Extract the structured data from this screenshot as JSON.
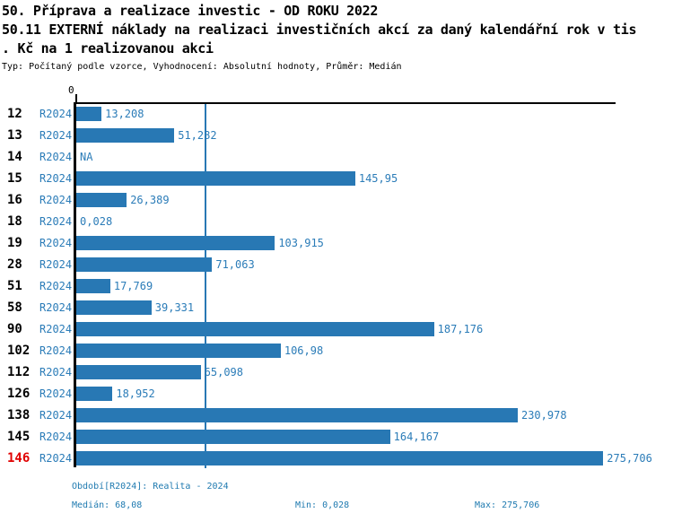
{
  "header": {
    "title_line1": "50. Příprava a realizace investic - OD ROKU 2022",
    "title_line2": "50.11 EXTERNÍ náklady na realizaci investičních akcí za daný kalendářní rok v tis",
    "title_line3": ". Kč na 1 realizovanou akci",
    "subtitle": "Typ: Počítaný podle vzorce, Vyhodnocení: Absolutní hodnoty, Průměr: Medián"
  },
  "chart_data": {
    "type": "bar",
    "orientation": "horizontal",
    "title": "50.11 EXTERNÍ náklady na realizaci investičních akcí za daný kalendářní rok v tis. Kč na 1 realizovanou akci",
    "series_label": "R2024",
    "axis_zero_label": "0",
    "xlim": [
      0,
      282
    ],
    "grid": false,
    "median_line_value": 68.08,
    "rows": [
      {
        "id": "12",
        "period": "R2024",
        "value": 13.208,
        "value_label": "13,208",
        "highlight": false
      },
      {
        "id": "13",
        "period": "R2024",
        "value": 51.282,
        "value_label": "51,282",
        "highlight": false
      },
      {
        "id": "14",
        "period": "R2024",
        "value": null,
        "value_label": "NA",
        "highlight": false
      },
      {
        "id": "15",
        "period": "R2024",
        "value": 145.95,
        "value_label": "145,95",
        "highlight": false
      },
      {
        "id": "16",
        "period": "R2024",
        "value": 26.389,
        "value_label": "26,389",
        "highlight": false
      },
      {
        "id": "18",
        "period": "R2024",
        "value": 0.028,
        "value_label": "0,028",
        "highlight": false
      },
      {
        "id": "19",
        "period": "R2024",
        "value": 103.915,
        "value_label": "103,915",
        "highlight": false
      },
      {
        "id": "28",
        "period": "R2024",
        "value": 71.063,
        "value_label": "71,063",
        "highlight": false
      },
      {
        "id": "51",
        "period": "R2024",
        "value": 17.769,
        "value_label": "17,769",
        "highlight": false
      },
      {
        "id": "58",
        "period": "R2024",
        "value": 39.331,
        "value_label": "39,331",
        "highlight": false
      },
      {
        "id": "90",
        "period": "R2024",
        "value": 187.176,
        "value_label": "187,176",
        "highlight": false
      },
      {
        "id": "102",
        "period": "R2024",
        "value": 106.98,
        "value_label": "106,98",
        "highlight": false
      },
      {
        "id": "112",
        "period": "R2024",
        "value": 65.098,
        "value_label": "65,098",
        "highlight": false
      },
      {
        "id": "126",
        "period": "R2024",
        "value": 18.952,
        "value_label": "18,952",
        "highlight": false
      },
      {
        "id": "138",
        "period": "R2024",
        "value": 230.978,
        "value_label": "230,978",
        "highlight": false
      },
      {
        "id": "145",
        "period": "R2024",
        "value": 164.167,
        "value_label": "164,167",
        "highlight": false
      },
      {
        "id": "146",
        "period": "R2024",
        "value": 275.706,
        "value_label": "275,706",
        "highlight": true
      }
    ],
    "stats": {
      "median": 68.08,
      "min": 0.028,
      "max": 275.706
    }
  },
  "footer": {
    "period_label": "Období[R2024]: Realita - 2024",
    "median_label": "Medián: 68,08",
    "min_label": "Min: 0,028",
    "max_label": "Max: 275,706"
  },
  "colors": {
    "bar_blue": "#2878b4",
    "text_blue": "#2b7cb8",
    "footer_blue": "#1f7ab0",
    "highlight_red": "#e00000",
    "axis_black": "#000000"
  }
}
